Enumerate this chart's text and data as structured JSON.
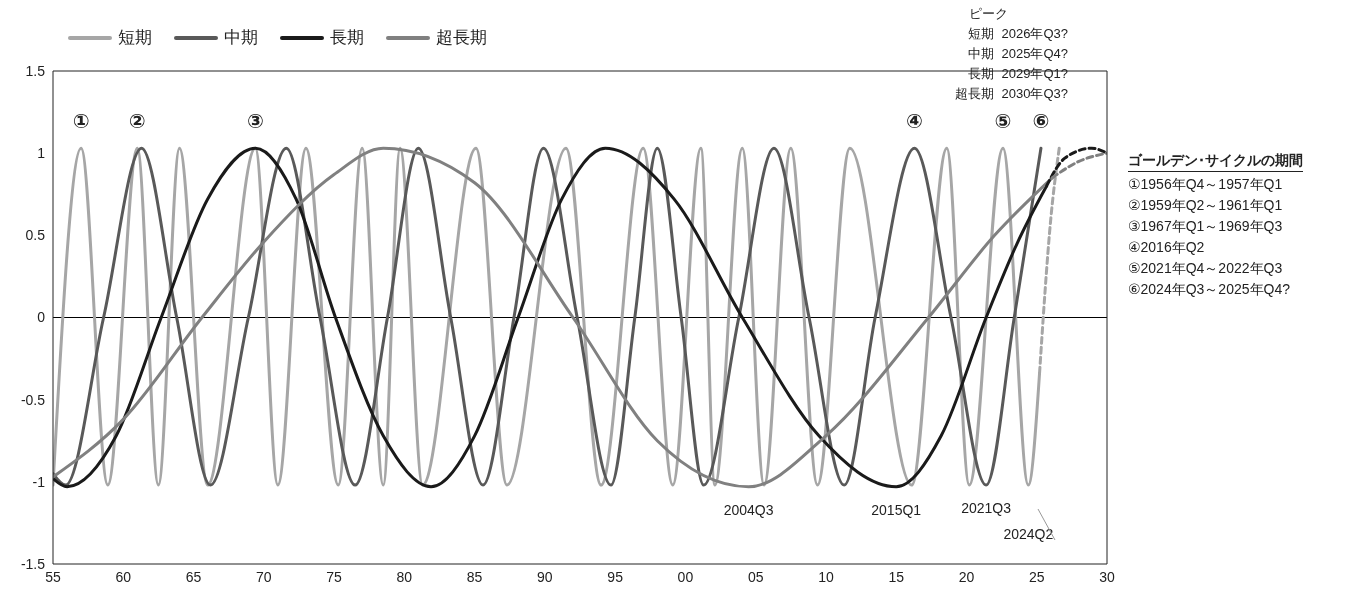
{
  "chart_data": {
    "type": "line",
    "legend": "top left",
    "marker": "none",
    "grid": false,
    "xlim": [
      1955,
      2030
    ],
    "xticks": [
      {
        "value": 1955,
        "label": "55"
      },
      {
        "value": 1960,
        "label": "60"
      },
      {
        "value": 1965,
        "label": "65"
      },
      {
        "value": 1970,
        "label": "70"
      },
      {
        "value": 1975,
        "label": "75"
      },
      {
        "value": 1980,
        "label": "80"
      },
      {
        "value": 1985,
        "label": "85"
      },
      {
        "value": 1990,
        "label": "90"
      },
      {
        "value": 1995,
        "label": "95"
      },
      {
        "value": 2000,
        "label": "00"
      },
      {
        "value": 2005,
        "label": "05"
      },
      {
        "value": 2010,
        "label": "10"
      },
      {
        "value": 2015,
        "label": "15"
      },
      {
        "value": 2020,
        "label": "20"
      },
      {
        "value": 2025,
        "label": "25"
      },
      {
        "value": 2030,
        "label": "30"
      }
    ],
    "ylim": [
      -1.5,
      1.5
    ],
    "yticks": [
      -1.5,
      -1,
      -0.5,
      0,
      0.5,
      1,
      1.5
    ],
    "ref_lines": [
      {
        "axis": "y",
        "value": 0,
        "color": "#000000"
      }
    ],
    "series": [
      {
        "name": "短期",
        "color": "#a6a6a6",
        "line_style": "solid",
        "x": [
          1955,
          1957,
          1958.9,
          1961,
          1962.5,
          1964,
          1966,
          1969.4,
          1971,
          1973,
          1975.3,
          1977,
          1978.5,
          1979.7,
          1981.3,
          1985.1,
          1987.3,
          1991.5,
          1994,
          1997,
          1999.1,
          2001.1,
          2002.1,
          2004.05,
          2005.6,
          2007.5,
          2009.4,
          2011.7,
          2016.1,
          2018.6,
          2020.2,
          2022.6,
          2024.4,
          2025.2
        ],
        "values": [
          -1.02,
          1.03,
          -1.02,
          1.03,
          -1.02,
          1.03,
          -1.02,
          1.03,
          -1.02,
          1.03,
          -1.02,
          1.03,
          -1.02,
          1.03,
          -1.02,
          1.03,
          -1.02,
          1.03,
          -1.02,
          1.03,
          -1.02,
          1.03,
          -1.02,
          1.03,
          -1.02,
          1.03,
          -1.02,
          1.03,
          -1.02,
          1.03,
          -1.02,
          1.03,
          -1.02,
          -0.34
        ]
      },
      {
        "name": "中期",
        "color": "#595959",
        "line_style": "solid",
        "x": [
          1955,
          1955.9,
          1958.6,
          1961.3,
          1963.8,
          1966.2,
          1968.9,
          1971.6,
          1974,
          1976.5,
          1978.8,
          1981,
          1983.3,
          1985.6,
          1987.8,
          1989.9,
          1992.3,
          1994.7,
          1996.4,
          1998,
          1999.7,
          2001.3,
          2003.8,
          2006.3,
          2008.8,
          2011.3,
          2013.5,
          2016.3,
          2018.9,
          2021.4,
          2023.4,
          2025.3
        ],
        "values": [
          -0.95,
          -1.02,
          0,
          1.03,
          0,
          -1.02,
          0,
          1.03,
          0,
          -1.02,
          0,
          1.03,
          0,
          -1.02,
          0,
          1.03,
          0,
          -1.02,
          0,
          1.03,
          0,
          -1.02,
          0,
          1.03,
          0,
          -1.02,
          0,
          1.03,
          0,
          -1.02,
          0,
          1.03
        ]
      },
      {
        "name": "長期",
        "color": "#1a1a1a",
        "line_style": "solid",
        "x": [
          1955,
          1956,
          1959.5,
          1962.7,
          1966,
          1969.4,
          1972.3,
          1975.1,
          1978.5,
          1981.9,
          1985,
          1988.1,
          1991.2,
          1994.3,
          1999.2,
          2004.05,
          2009.5,
          2015,
          2018.2,
          2021.4,
          2023.6,
          2025.7
        ],
        "values": [
          -0.98,
          -1.03,
          -0.72,
          0,
          0.72,
          1.03,
          0.72,
          0,
          -0.72,
          -1.03,
          -0.72,
          0,
          0.72,
          1.03,
          0.72,
          0,
          -0.72,
          -1.03,
          -0.72,
          0,
          0.45,
          0.8
        ]
      },
      {
        "name": "超長期",
        "color": "#808080",
        "line_style": "solid",
        "x": [
          1955,
          1960,
          1965.6,
          1970,
          1975,
          1978.5,
          1985,
          1992,
          1998,
          2004.5,
          2010,
          2017.3,
          2022,
          2026.1
        ],
        "values": [
          -0.97,
          -0.62,
          0,
          0.46,
          0.87,
          1.03,
          0.82,
          0,
          -0.75,
          -1.03,
          -0.72,
          0,
          0.5,
          0.85
        ]
      },
      {
        "color": "#a6a6a6",
        "line_style": "dashed",
        "x": [
          2025.2,
          2026,
          2026.6
        ],
        "values": [
          -0.34,
          0.6,
          1.03
        ]
      },
      {
        "color": "#1a1a1a",
        "line_style": "dashed",
        "x": [
          2025.7,
          2027,
          2028.9,
          2030
        ],
        "values": [
          0.8,
          0.97,
          1.03,
          1.0
        ]
      },
      {
        "color": "#808080",
        "line_style": "dashed",
        "x": [
          2026.1,
          2028,
          2030
        ],
        "values": [
          0.85,
          0.95,
          1.0
        ]
      }
    ],
    "annotations": [
      {
        "text": "①",
        "x": 1957,
        "y": 1.03
      },
      {
        "text": "②",
        "x": 1961,
        "y": 1.03
      },
      {
        "text": "③",
        "x": 1969.4,
        "y": 1.03
      },
      {
        "text": "④",
        "x": 2016.3,
        "y": 1.03
      },
      {
        "text": "⑤",
        "x": 2022.6,
        "y": 1.03
      },
      {
        "text": "⑥",
        "x": 2025.3,
        "y": 1.03
      },
      {
        "text": "2004Q3",
        "x": 2004.5,
        "y": -1.03
      },
      {
        "text": "2015Q1",
        "x": 2015,
        "y": -1.03
      },
      {
        "text": "2021Q3",
        "x": 2021.4,
        "y": -1.02
      },
      {
        "text": "2024Q2",
        "x": 2024.4,
        "y": -1.02
      },
      "ピーク",
      "短期  2026年Q3?",
      "中期  2025年Q4?",
      "長期  2029年Q1?",
      "超長期  2030年Q3?",
      "ゴールデン･サイクルの期間",
      "①1956年Q4～1957年Q1",
      "②1959年Q2～1961年Q1",
      "③1967年Q1～1969年Q3",
      "④2016年Q2",
      "⑤2021年Q4～2022年Q3",
      "⑥2024年Q3～2025年Q4?"
    ]
  }
}
